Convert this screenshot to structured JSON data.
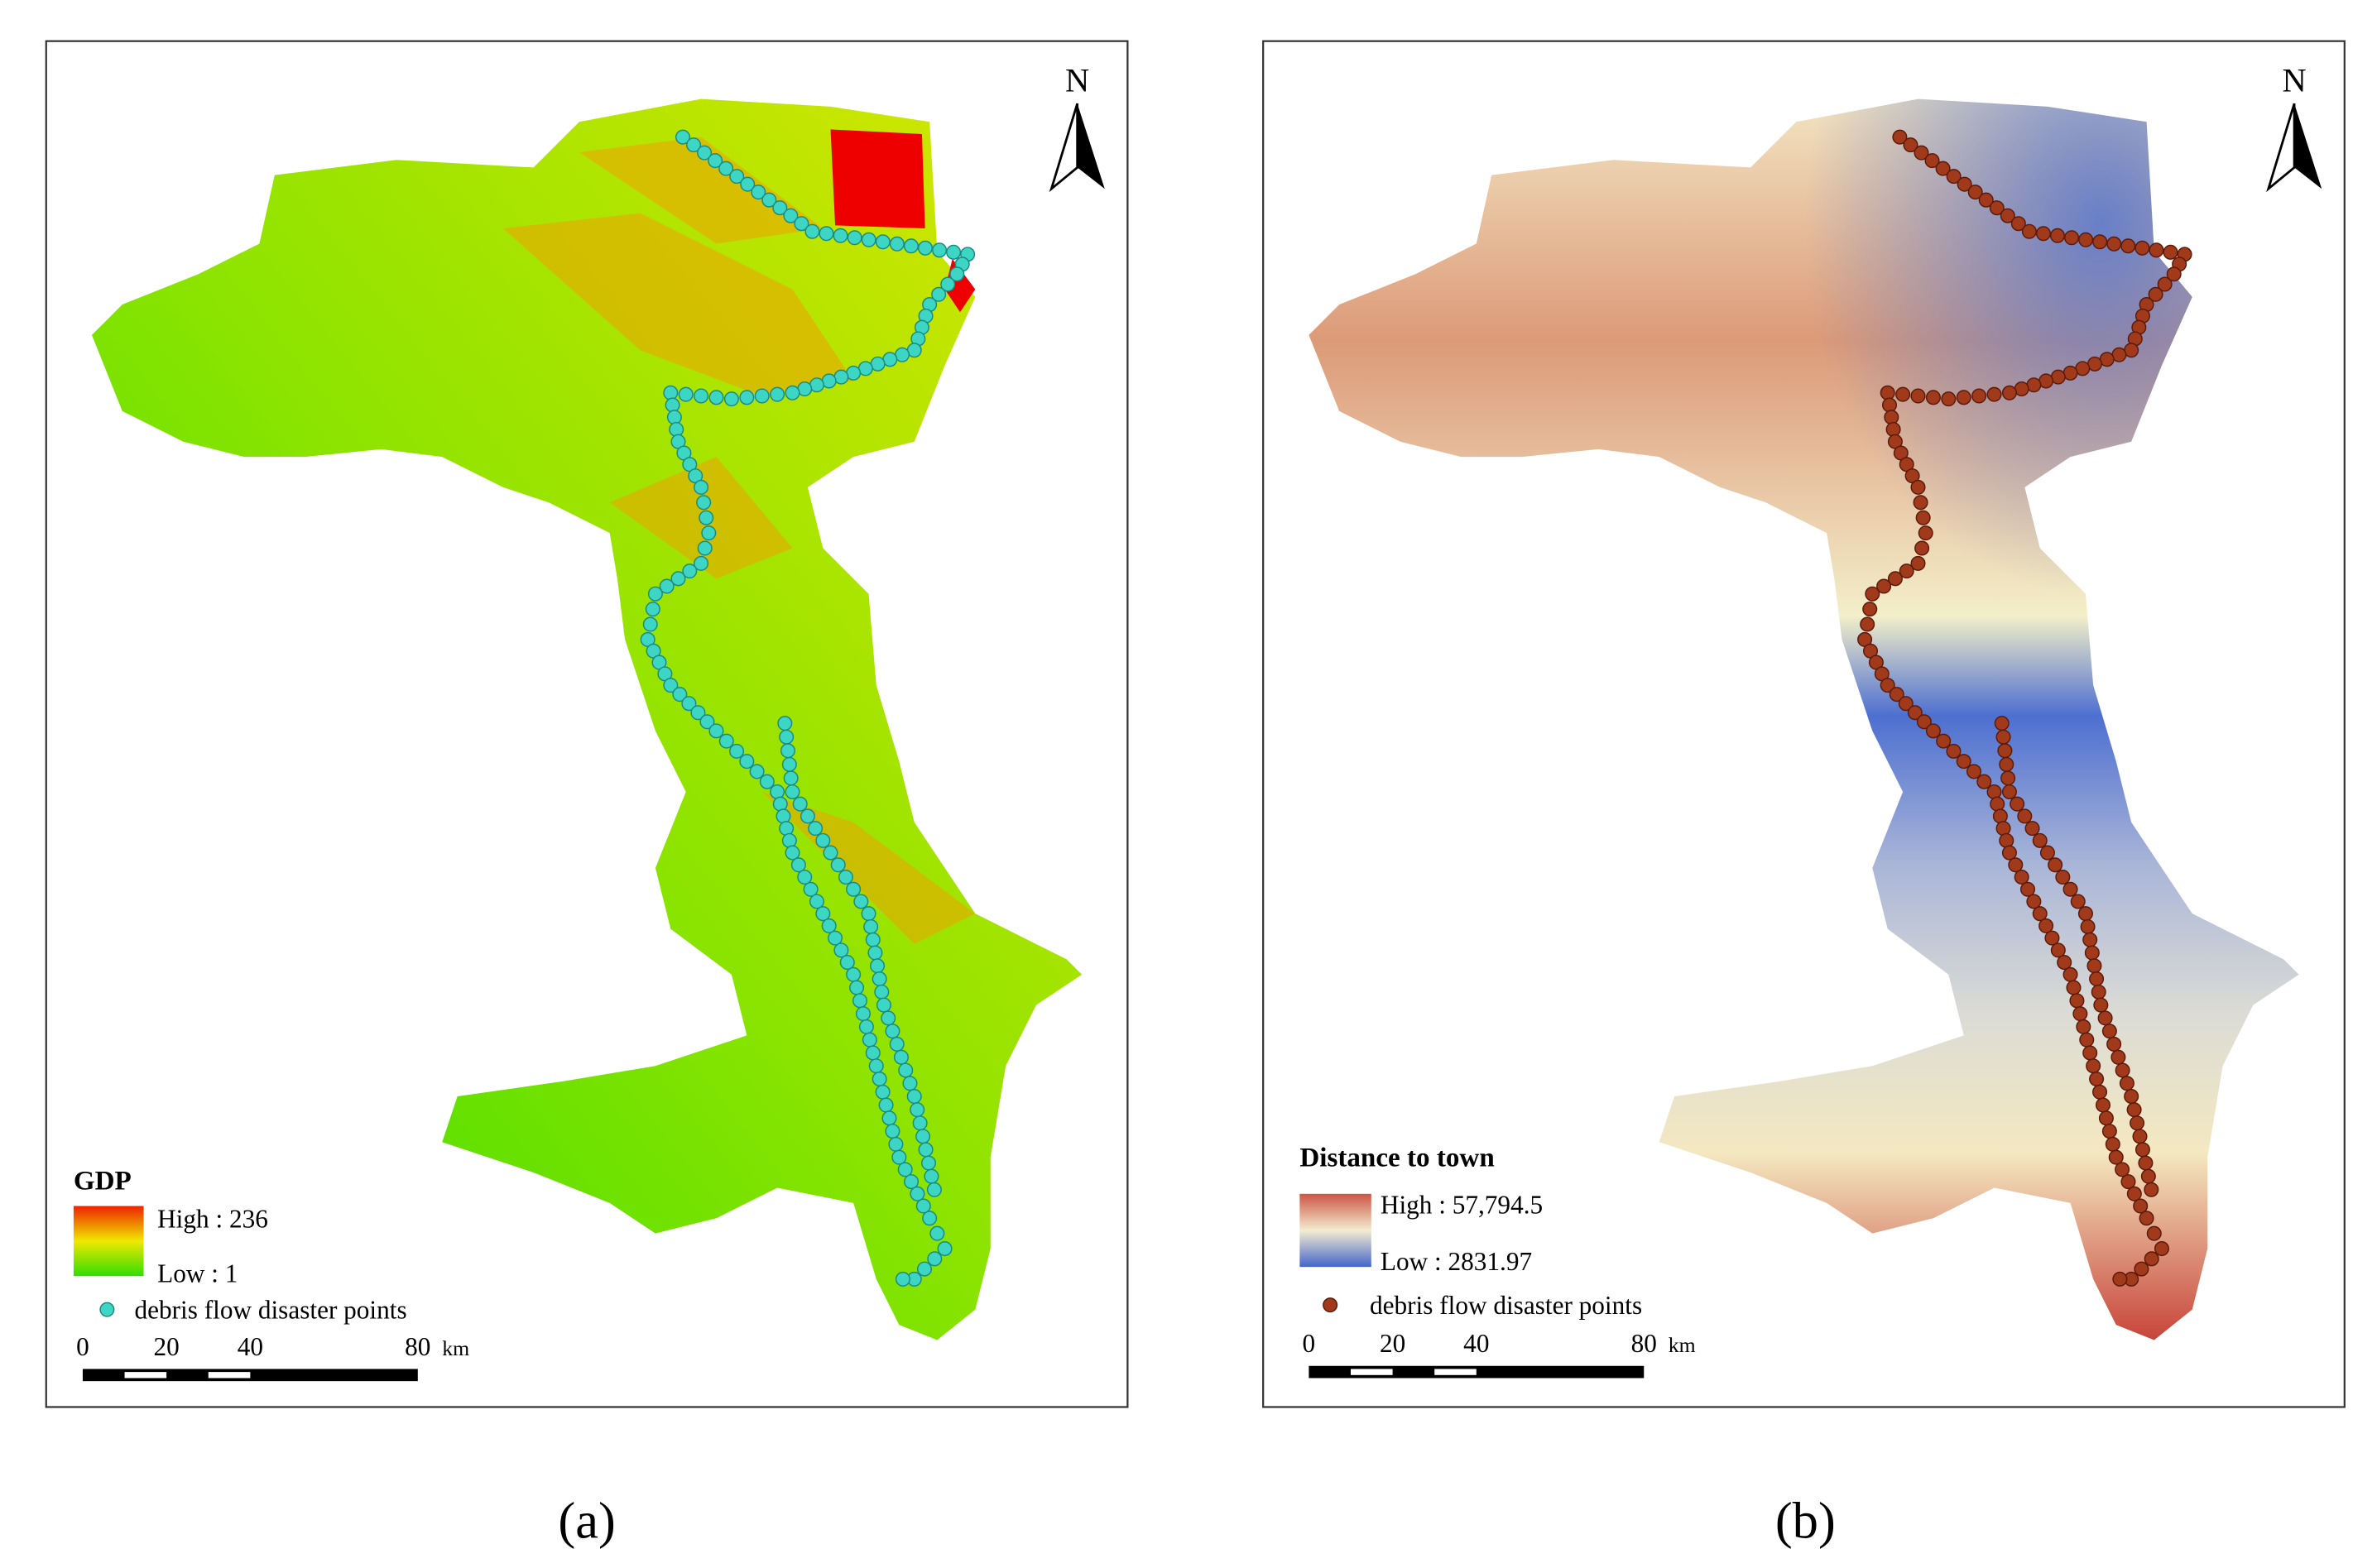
{
  "panels": [
    {
      "label": "(a)",
      "north": "N",
      "legend": {
        "title": "GDP",
        "high": "High : 236",
        "low": "Low : 1",
        "points": "debris flow disaster points"
      },
      "scale_bar": {
        "ticks": [
          "0",
          "20",
          "40",
          "80"
        ],
        "unit": "km"
      }
    },
    {
      "label": "(b)",
      "north": "N",
      "legend": {
        "title": "Distance to town",
        "high": "High : 57,794.5",
        "low": "Low : 2831.97",
        "points": "debris flow disaster points"
      },
      "scale_bar": {
        "ticks": [
          "0",
          "20",
          "40",
          "80"
        ],
        "unit": "km"
      }
    }
  ]
}
